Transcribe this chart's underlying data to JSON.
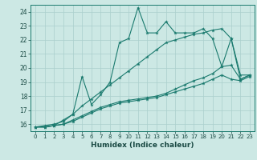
{
  "xlabel": "Humidex (Indice chaleur)",
  "bg_color": "#cce8e4",
  "grid_color": "#aacfcc",
  "line_color": "#1a7a6e",
  "xlim": [
    -0.5,
    23.5
  ],
  "ylim": [
    15.5,
    24.5
  ],
  "xticks": [
    0,
    1,
    2,
    3,
    4,
    5,
    6,
    7,
    8,
    9,
    10,
    11,
    12,
    13,
    14,
    15,
    16,
    17,
    18,
    19,
    20,
    21,
    22,
    23
  ],
  "yticks": [
    16,
    17,
    18,
    19,
    20,
    21,
    22,
    23,
    24
  ],
  "series": [
    [
      15.8,
      15.8,
      15.9,
      16.3,
      16.7,
      19.4,
      17.4,
      18.1,
      19.0,
      21.8,
      22.1,
      24.3,
      22.5,
      22.5,
      23.3,
      22.5,
      22.5,
      22.5,
      22.8,
      22.1,
      20.1,
      22.1,
      19.2,
      19.5
    ],
    [
      15.8,
      15.8,
      15.9,
      16.0,
      16.2,
      16.5,
      16.8,
      17.1,
      17.3,
      17.5,
      17.6,
      17.7,
      17.8,
      17.9,
      18.1,
      18.3,
      18.5,
      18.7,
      18.9,
      19.2,
      19.5,
      19.2,
      19.1,
      19.4
    ],
    [
      15.8,
      15.8,
      15.9,
      16.0,
      16.3,
      16.6,
      16.9,
      17.2,
      17.4,
      17.6,
      17.7,
      17.8,
      17.9,
      18.0,
      18.2,
      18.5,
      18.8,
      19.1,
      19.3,
      19.6,
      20.1,
      20.2,
      19.2,
      19.5
    ],
    [
      15.8,
      15.9,
      16.0,
      16.2,
      16.7,
      17.3,
      17.8,
      18.3,
      18.8,
      19.3,
      19.8,
      20.3,
      20.8,
      21.3,
      21.8,
      22.0,
      22.2,
      22.4,
      22.5,
      22.7,
      22.8,
      22.1,
      19.5,
      19.5
    ]
  ]
}
